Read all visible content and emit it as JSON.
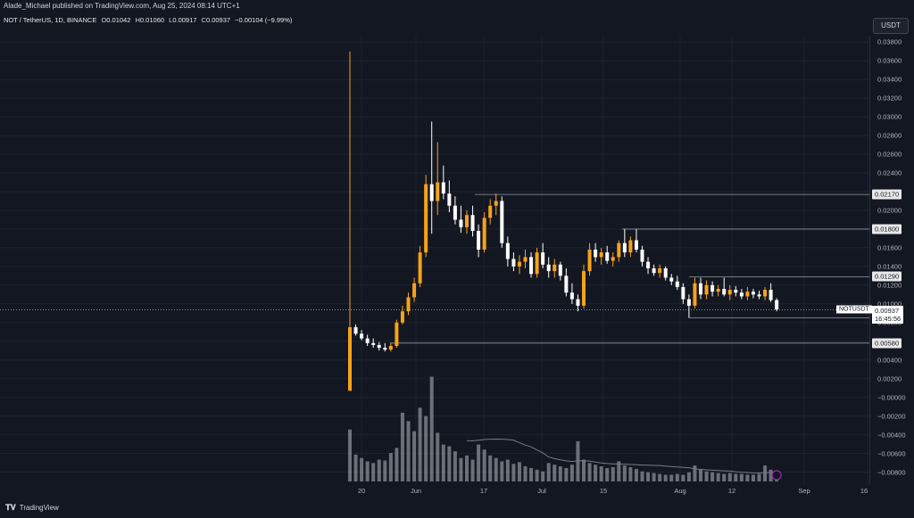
{
  "header": {
    "published": "Alade_Michael published on TradingView.com, Aug 25, 2024 08:14 UTC+1"
  },
  "legend": {
    "symbol": "NOT / TetherUS, 1D, BINANCE",
    "o_label": "O",
    "o": "0.01042",
    "h_label": "H",
    "h": "0.01060",
    "l_label": "L",
    "l": "0.00917",
    "c_label": "C",
    "c": "0.00937",
    "change": "−0.00104 (−9.99%)"
  },
  "currency_button": "USDT",
  "price_axis": {
    "ticks": [
      "0.03800",
      "0.03600",
      "0.03400",
      "0.03200",
      "0.03000",
      "0.02800",
      "0.02600",
      "0.02400",
      "0.02200",
      "0.02000",
      "0.01800",
      "0.01600",
      "0.01400",
      "0.01200",
      "0.01000",
      "0.00800",
      "0.00600",
      "0.00400",
      "0.00200",
      "−0.00000",
      "−0.00200",
      "−0.00400",
      "−0.00600",
      "−0.00800"
    ],
    "highlights": [
      "0.02170",
      "0.01800",
      "0.01290",
      "0.00850",
      "0.00580"
    ],
    "current_price": "0.00937",
    "countdown": "16:45:56",
    "symbol_tag": "NOTUSDT"
  },
  "time_axis": {
    "ticks": [
      "20",
      "Jun",
      "17",
      "Jul",
      "15",
      "Aug",
      "12",
      "Sep",
      "16"
    ]
  },
  "brand": "TradingView",
  "colors": {
    "background": "#131722",
    "up": "#f7a21b",
    "down": "#ffffff",
    "grid": "#1e222d",
    "line": "#787b86",
    "volume": "#8a8d96"
  },
  "chart_data": {
    "type": "candlestick",
    "title": "NOT / TetherUS, 1D, BINANCE",
    "y_range": [
      -0.009,
      0.0385
    ],
    "horizontal_levels": [
      0.0217,
      0.018,
      0.0129,
      0.0085,
      0.0058
    ],
    "last_close": 0.00937,
    "candles": [
      [
        0.0007,
        0.037,
        0.0007,
        0.0075
      ],
      [
        0.0075,
        0.0078,
        0.0066,
        0.0068
      ],
      [
        0.0068,
        0.0072,
        0.0061,
        0.0063
      ],
      [
        0.0063,
        0.0067,
        0.0055,
        0.0058
      ],
      [
        0.0058,
        0.0063,
        0.0053,
        0.0056
      ],
      [
        0.0056,
        0.0059,
        0.005,
        0.0053
      ],
      [
        0.0053,
        0.0058,
        0.0049,
        0.0051
      ],
      [
        0.0051,
        0.0058,
        0.0049,
        0.0055
      ],
      [
        0.0055,
        0.0083,
        0.0053,
        0.008
      ],
      [
        0.008,
        0.0098,
        0.0078,
        0.0092
      ],
      [
        0.0092,
        0.0112,
        0.0088,
        0.0107
      ],
      [
        0.0107,
        0.0128,
        0.0102,
        0.0122
      ],
      [
        0.0122,
        0.0162,
        0.0118,
        0.0155
      ],
      [
        0.0155,
        0.0238,
        0.015,
        0.0228
      ],
      [
        0.0228,
        0.0295,
        0.0175,
        0.021
      ],
      [
        0.021,
        0.0273,
        0.0195,
        0.023
      ],
      [
        0.023,
        0.0248,
        0.0212,
        0.0218
      ],
      [
        0.0218,
        0.0232,
        0.0198,
        0.0205
      ],
      [
        0.0205,
        0.0215,
        0.0185,
        0.019
      ],
      [
        0.019,
        0.0205,
        0.0176,
        0.0182
      ],
      [
        0.0182,
        0.02,
        0.0175,
        0.0195
      ],
      [
        0.0195,
        0.0205,
        0.0172,
        0.0178
      ],
      [
        0.0178,
        0.0185,
        0.015,
        0.0158
      ],
      [
        0.0158,
        0.0198,
        0.0155,
        0.0192
      ],
      [
        0.0192,
        0.0212,
        0.0185,
        0.0205
      ],
      [
        0.0205,
        0.0218,
        0.0195,
        0.021
      ],
      [
        0.021,
        0.0215,
        0.016,
        0.0165
      ],
      [
        0.0165,
        0.0172,
        0.014,
        0.0148
      ],
      [
        0.0148,
        0.0155,
        0.0135,
        0.014
      ],
      [
        0.014,
        0.0152,
        0.0132,
        0.0145
      ],
      [
        0.0145,
        0.0158,
        0.0138,
        0.015
      ],
      [
        0.015,
        0.0155,
        0.0128,
        0.0132
      ],
      [
        0.0132,
        0.016,
        0.0128,
        0.0155
      ],
      [
        0.0155,
        0.0165,
        0.0138,
        0.0142
      ],
      [
        0.0142,
        0.015,
        0.0128,
        0.0135
      ],
      [
        0.0135,
        0.0148,
        0.0128,
        0.0142
      ],
      [
        0.0142,
        0.0145,
        0.0125,
        0.013
      ],
      [
        0.013,
        0.0138,
        0.0108,
        0.0112
      ],
      [
        0.0112,
        0.0122,
        0.01,
        0.0105
      ],
      [
        0.0105,
        0.011,
        0.0092,
        0.0098
      ],
      [
        0.0098,
        0.0142,
        0.0095,
        0.0135
      ],
      [
        0.0135,
        0.0165,
        0.013,
        0.0158
      ],
      [
        0.0158,
        0.0165,
        0.0145,
        0.015
      ],
      [
        0.015,
        0.016,
        0.0142,
        0.0155
      ],
      [
        0.0155,
        0.0162,
        0.0143,
        0.0146
      ],
      [
        0.0146,
        0.0155,
        0.014,
        0.015
      ],
      [
        0.015,
        0.0168,
        0.0145,
        0.0165
      ],
      [
        0.0165,
        0.018,
        0.015,
        0.0155
      ],
      [
        0.0155,
        0.0172,
        0.015,
        0.0168
      ],
      [
        0.0168,
        0.018,
        0.0155,
        0.0158
      ],
      [
        0.0158,
        0.0162,
        0.014,
        0.0145
      ],
      [
        0.0145,
        0.015,
        0.0132,
        0.0138
      ],
      [
        0.0138,
        0.0142,
        0.013,
        0.0133
      ],
      [
        0.0133,
        0.0142,
        0.0128,
        0.0138
      ],
      [
        0.0138,
        0.014,
        0.0125,
        0.0128
      ],
      [
        0.0128,
        0.0132,
        0.012,
        0.0124
      ],
      [
        0.0124,
        0.013,
        0.0115,
        0.0118
      ],
      [
        0.0118,
        0.0122,
        0.01,
        0.0105
      ],
      [
        0.0105,
        0.011,
        0.0085,
        0.0098
      ],
      [
        0.0098,
        0.0128,
        0.0095,
        0.0122
      ],
      [
        0.0122,
        0.0128,
        0.0105,
        0.011
      ],
      [
        0.011,
        0.0125,
        0.0105,
        0.012
      ],
      [
        0.012,
        0.0124,
        0.0108,
        0.0113
      ],
      [
        0.0113,
        0.012,
        0.0108,
        0.0116
      ],
      [
        0.0116,
        0.0128,
        0.0108,
        0.011
      ],
      [
        0.011,
        0.012,
        0.0104,
        0.0115
      ],
      [
        0.0115,
        0.0119,
        0.0108,
        0.0112
      ],
      [
        0.0112,
        0.0116,
        0.0105,
        0.0108
      ],
      [
        0.0108,
        0.0118,
        0.0104,
        0.0113
      ],
      [
        0.0113,
        0.0116,
        0.0106,
        0.011
      ],
      [
        0.011,
        0.0114,
        0.0105,
        0.0108
      ],
      [
        0.0108,
        0.0118,
        0.0104,
        0.0115
      ],
      [
        0.0115,
        0.0122,
        0.0102,
        0.0104
      ],
      [
        0.0104,
        0.0106,
        0.0092,
        0.0094
      ]
    ],
    "volumes": [
      62,
      32,
      28,
      24,
      22,
      26,
      25,
      34,
      40,
      82,
      72,
      60,
      88,
      78,
      125,
      58,
      44,
      42,
      36,
      28,
      31,
      26,
      44,
      38,
      31,
      28,
      24,
      26,
      21,
      23,
      18,
      16,
      14,
      12,
      22,
      20,
      18,
      16,
      20,
      48,
      26,
      22,
      20,
      18,
      16,
      17,
      24,
      19,
      17,
      15,
      12,
      11,
      10,
      9,
      8,
      8,
      9,
      8,
      11,
      19,
      14,
      12,
      11,
      10,
      9,
      10,
      9,
      9,
      8,
      8,
      9,
      19,
      14,
      11
    ]
  }
}
